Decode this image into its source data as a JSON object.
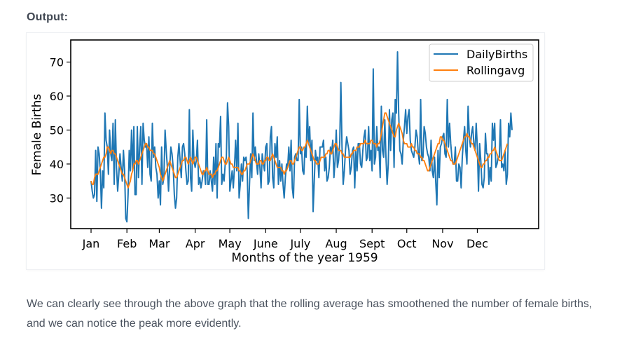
{
  "page": {
    "output_label": "Output:",
    "caption": "We can clearly see through the above graph that the rolling average has smoothened the number of female births, and we can notice the peak more evidently."
  },
  "chart_data": {
    "type": "line",
    "title": "",
    "xlabel": "Months of the year 1959",
    "ylabel": "Female Births",
    "x_domain": [
      1,
      365
    ],
    "ylim": [
      21,
      76.5
    ],
    "yticks": [
      30,
      40,
      50,
      60,
      70
    ],
    "xticks": [
      {
        "label": "Jan",
        "day": 1
      },
      {
        "label": "Feb",
        "day": 32
      },
      {
        "label": "Mar",
        "day": 60
      },
      {
        "label": "Apr",
        "day": 91
      },
      {
        "label": "May",
        "day": 121
      },
      {
        "label": "June",
        "day": 152
      },
      {
        "label": "July",
        "day": 182
      },
      {
        "label": "Aug",
        "day": 213
      },
      {
        "label": "Sept",
        "day": 244
      },
      {
        "label": "Oct",
        "day": 274
      },
      {
        "label": "Nov",
        "day": 305
      },
      {
        "label": "Dec",
        "day": 335
      }
    ],
    "grid": false,
    "legend": "top-right",
    "series": [
      {
        "name": "DailyBirths",
        "color": "#1f77b4",
        "values": [
          35,
          32,
          30,
          31,
          44,
          29,
          45,
          43,
          38,
          27,
          38,
          33,
          55,
          47,
          45,
          37,
          50,
          43,
          41,
          52,
          34,
          53,
          39,
          32,
          37,
          43,
          39,
          35,
          44,
          38,
          24,
          23,
          31,
          44,
          38,
          50,
          38,
          51,
          31,
          31,
          51,
          36,
          45,
          51,
          34,
          52,
          47,
          45,
          46,
          39,
          48,
          37,
          35,
          52,
          42,
          45,
          39,
          37,
          30,
          35,
          28,
          45,
          34,
          36,
          50,
          44,
          39,
          32,
          39,
          45,
          43,
          39,
          31,
          27,
          30,
          42,
          46,
          41,
          36,
          45,
          46,
          43,
          38,
          34,
          35,
          56,
          36,
          32,
          50,
          41,
          39,
          41,
          47,
          34,
          36,
          33,
          35,
          38,
          38,
          34,
          53,
          34,
          34,
          38,
          35,
          32,
          42,
          34,
          46,
          30,
          46,
          45,
          54,
          34,
          37,
          35,
          40,
          42,
          58,
          51,
          32,
          35,
          38,
          33,
          39,
          47,
          38,
          52,
          30,
          34,
          40,
          35,
          42,
          41,
          42,
          38,
          24,
          34,
          43,
          36,
          55,
          41,
          45,
          41,
          37,
          43,
          39,
          33,
          43,
          40,
          38,
          45,
          46,
          34,
          35,
          48,
          51,
          36,
          33,
          46,
          42,
          48,
          34,
          41,
          35,
          40,
          34,
          30,
          36,
          40,
          39,
          45,
          38,
          47,
          33,
          30,
          42,
          43,
          41,
          41,
          59,
          43,
          45,
          38,
          37,
          45,
          42,
          57,
          46,
          51,
          41,
          47,
          26,
          35,
          44,
          41,
          42,
          36,
          45,
          45,
          45,
          47,
          38,
          42,
          35,
          36,
          39,
          45,
          43,
          47,
          36,
          41,
          50,
          39,
          41,
          46,
          64,
          45,
          34,
          38,
          44,
          48,
          46,
          44,
          37,
          39,
          44,
          45,
          33,
          44,
          38,
          46,
          46,
          40,
          39,
          44,
          48,
          50,
          41,
          42,
          51,
          41,
          44,
          38,
          68,
          40,
          42,
          51,
          44,
          45,
          36,
          57,
          44,
          42,
          53,
          42,
          34,
          40,
          56,
          44,
          53,
          55,
          39,
          59,
          55,
          73,
          55,
          44,
          43,
          40,
          47,
          51,
          56,
          49,
          54,
          56,
          47,
          44,
          43,
          42,
          45,
          50,
          48,
          43,
          40,
          59,
          41,
          42,
          51,
          49,
          45,
          43,
          42,
          38,
          47,
          38,
          36,
          42,
          35,
          28,
          44,
          36,
          45,
          46,
          48,
          49,
          43,
          42,
          59,
          45,
          52,
          46,
          42,
          40,
          40,
          45,
          35,
          35,
          40,
          39,
          33,
          42,
          47,
          51,
          44,
          40,
          57,
          49,
          45,
          49,
          51,
          46,
          44,
          52,
          45,
          32,
          46,
          41,
          34,
          33,
          36,
          49,
          43,
          43,
          34,
          39,
          35,
          52,
          47,
          52,
          39,
          40,
          42,
          42,
          53,
          39,
          40,
          38,
          44,
          34,
          37,
          52,
          48,
          55,
          50
        ]
      },
      {
        "name": "Rollingavg",
        "color": "#ff7f0e",
        "values": [
          35,
          34,
          34,
          36,
          37,
          37,
          37,
          38,
          39,
          40,
          41,
          42,
          42,
          43,
          45,
          45,
          44,
          43,
          44,
          44,
          43,
          43,
          42,
          41,
          40,
          39,
          38,
          37,
          37,
          36,
          35,
          34,
          33,
          34,
          35,
          37,
          38,
          40,
          40,
          41,
          41,
          40,
          41,
          42,
          43,
          44,
          45,
          46,
          46,
          45,
          45,
          44,
          44,
          44,
          43,
          43,
          42,
          41,
          40,
          39,
          37,
          36,
          35,
          36,
          37,
          38,
          39,
          40,
          41,
          40,
          39,
          38,
          37,
          36,
          36,
          37,
          38,
          39,
          40,
          41,
          41,
          42,
          42,
          41,
          40,
          41,
          42,
          41,
          40,
          41,
          42,
          42,
          41,
          40,
          39,
          38,
          37,
          37,
          38,
          38,
          39,
          38,
          37,
          37,
          37,
          36,
          37,
          37,
          38,
          38,
          39,
          40,
          41,
          42,
          42,
          41,
          40,
          40,
          41,
          42,
          41,
          40,
          40,
          39,
          39,
          39,
          39,
          39,
          38,
          38,
          37,
          37,
          38,
          38,
          39,
          40,
          40,
          40,
          41,
          42,
          43,
          42,
          41,
          40,
          40,
          40,
          41,
          41,
          40,
          40,
          41,
          41,
          42,
          42,
          41,
          41,
          42,
          43,
          42,
          41,
          40,
          39,
          39,
          39,
          39,
          38,
          38,
          37,
          38,
          38,
          39,
          40,
          41,
          41,
          40,
          40,
          41,
          42,
          43,
          44,
          45,
          45,
          44,
          44,
          45,
          45,
          46,
          47,
          46,
          45,
          44,
          43,
          42,
          41,
          41,
          40,
          40,
          40,
          41,
          42,
          42,
          42,
          42,
          43,
          43,
          44,
          44,
          43,
          43,
          44,
          45,
          46,
          46,
          45,
          44,
          44,
          44,
          43,
          43,
          42,
          42,
          42,
          42,
          42,
          42,
          43,
          43,
          44,
          44,
          44,
          45,
          45,
          45,
          46,
          46,
          46,
          46,
          47,
          46,
          46,
          46,
          46,
          47,
          47,
          46,
          46,
          46,
          45,
          46,
          46,
          47,
          49,
          51,
          53,
          55,
          55,
          54,
          53,
          52,
          51,
          50,
          49,
          48,
          48,
          50,
          51,
          52,
          51,
          50,
          49,
          47,
          46,
          46,
          46,
          45,
          45,
          45,
          46,
          45,
          45,
          44,
          44,
          43,
          43,
          43,
          42,
          42,
          41,
          41,
          40,
          39,
          38,
          38,
          39,
          40,
          41,
          42,
          43,
          44,
          45,
          46,
          46,
          48,
          48,
          47,
          47,
          46,
          45,
          44,
          43,
          42,
          41,
          41,
          40,
          40,
          40,
          41,
          42,
          43,
          44,
          45,
          46,
          47,
          48,
          48,
          49,
          48,
          48,
          47,
          46,
          46,
          45,
          44,
          43,
          42,
          41,
          40,
          39,
          39,
          40,
          40,
          41,
          41,
          42,
          42,
          43,
          43,
          44,
          44,
          45,
          44,
          43,
          42,
          41,
          41,
          41,
          42,
          43,
          44,
          45,
          46
        ]
      }
    ]
  }
}
